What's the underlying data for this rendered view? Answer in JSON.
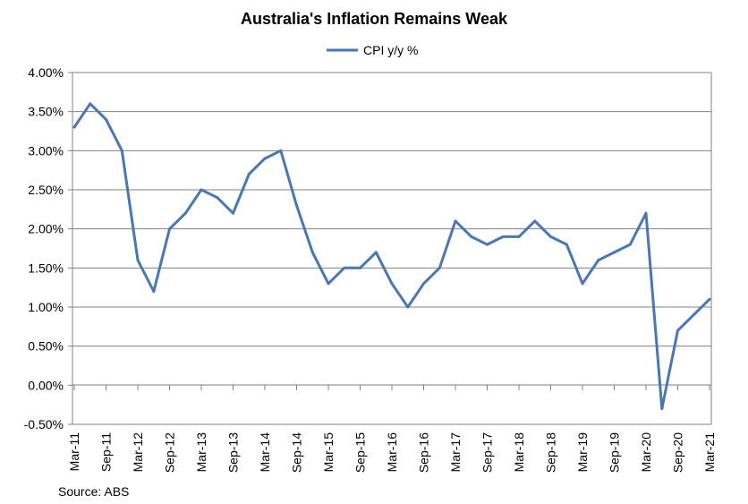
{
  "chart_data": {
    "type": "line",
    "title": "Australia's Inflation Remains Weak",
    "source": "Source: ABS",
    "xlabel": "",
    "ylabel": "",
    "ylim": [
      -0.5,
      4.0
    ],
    "y_ticks": [
      "4.00%",
      "3.50%",
      "3.00%",
      "2.50%",
      "2.00%",
      "1.50%",
      "1.00%",
      "0.50%",
      "0.00%",
      "-0.50%"
    ],
    "y_tick_values": [
      4.0,
      3.5,
      3.0,
      2.5,
      2.0,
      1.5,
      1.0,
      0.5,
      0.0,
      -0.5
    ],
    "x_tick_labels": [
      "Mar-11",
      "Sep-11",
      "Mar-12",
      "Sep-12",
      "Mar-13",
      "Sep-13",
      "Mar-14",
      "Sep-14",
      "Mar-15",
      "Sep-15",
      "Mar-16",
      "Sep-16",
      "Mar-17",
      "Sep-17",
      "Mar-18",
      "Sep-18",
      "Mar-19",
      "Sep-19",
      "Mar-20",
      "Sep-20",
      "Mar-21"
    ],
    "grid": "horizontal",
    "legend_position": "top-center",
    "series_color": "#4a76b2",
    "series": [
      {
        "name": "CPI y/y %",
        "x": [
          "Mar-11",
          "Jun-11",
          "Sep-11",
          "Dec-11",
          "Mar-12",
          "Jun-12",
          "Sep-12",
          "Dec-12",
          "Mar-13",
          "Jun-13",
          "Sep-13",
          "Dec-13",
          "Mar-14",
          "Jun-14",
          "Sep-14",
          "Dec-14",
          "Mar-15",
          "Jun-15",
          "Sep-15",
          "Dec-15",
          "Mar-16",
          "Jun-16",
          "Sep-16",
          "Dec-16",
          "Mar-17",
          "Jun-17",
          "Sep-17",
          "Dec-17",
          "Mar-18",
          "Jun-18",
          "Sep-18",
          "Dec-18",
          "Mar-19",
          "Jun-19",
          "Sep-19",
          "Dec-19",
          "Mar-20",
          "Jun-20",
          "Sep-20",
          "Dec-20",
          "Mar-21"
        ],
        "values": [
          3.3,
          3.6,
          3.4,
          3.0,
          1.6,
          1.2,
          2.0,
          2.2,
          2.5,
          2.4,
          2.2,
          2.7,
          2.9,
          3.0,
          2.3,
          1.7,
          1.3,
          1.5,
          1.5,
          1.7,
          1.3,
          1.0,
          1.3,
          1.5,
          2.1,
          1.9,
          1.8,
          1.9,
          1.9,
          2.1,
          1.9,
          1.8,
          1.3,
          1.6,
          1.7,
          1.8,
          2.2,
          -0.3,
          0.7,
          0.9,
          1.1
        ]
      }
    ]
  }
}
